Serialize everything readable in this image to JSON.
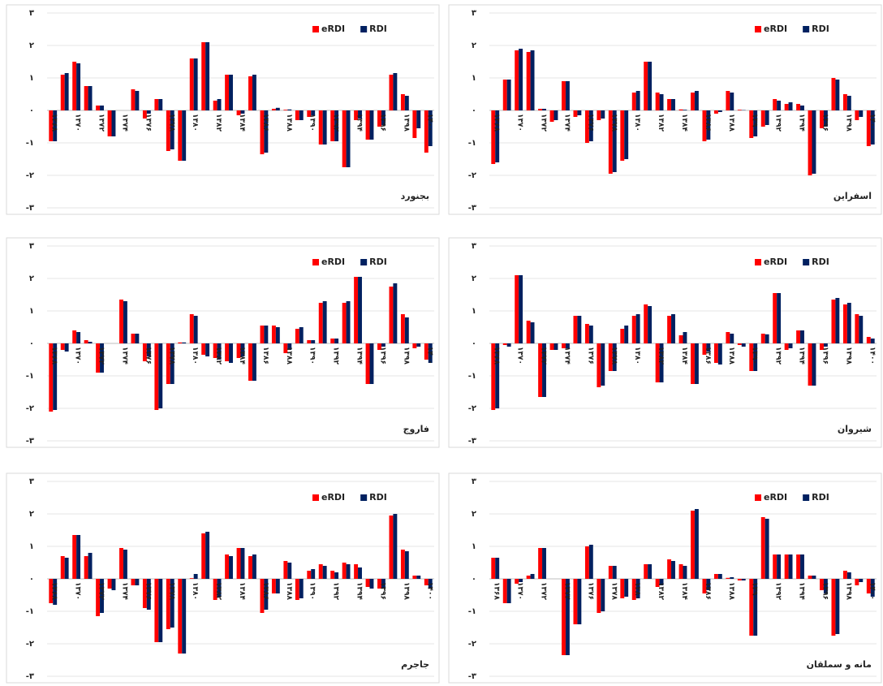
{
  "chart_data": [
    {
      "type": "bar",
      "title": "بجنورد",
      "legend": "upper right",
      "grid": true,
      "categories": [
        "۱۳۶۸",
        null,
        "۱۳۷۰",
        null,
        "۱۳۷۲",
        null,
        "۱۳۷۴",
        null,
        "۱۳۷۶",
        null,
        "۱۳۷۸",
        null,
        "۱۳۸۰",
        null,
        "۱۳۸۲",
        null,
        "۱۳۸۴",
        null,
        "۱۳۸۶",
        null,
        "۱۳۸۸",
        null,
        "۱۳۹۰",
        null,
        "۱۳۹۲",
        null,
        "۱۳۹۴",
        null,
        "۱۳۹۶",
        null,
        "۱۳۹۸",
        null,
        "۱۴۰۰"
      ],
      "series": [
        {
          "name": "eRDI",
          "color": "#ff0000",
          "values": [
            -0.95,
            1.1,
            1.5,
            0.75,
            0.15,
            -0.8,
            0,
            0.65,
            -0.25,
            0.35,
            -1.25,
            -1.55,
            1.6,
            2.1,
            0.3,
            1.1,
            -0.15,
            1.05,
            -1.35,
            0.05,
            0.02,
            -0.3,
            -0.2,
            -1.05,
            -0.95,
            -1.75,
            -0.3,
            -0.9,
            -0.5,
            1.1,
            0.5,
            -0.85,
            -1.3
          ]
        },
        {
          "name": "RDI",
          "color": "#002060",
          "values": [
            -0.95,
            1.15,
            1.45,
            0.75,
            0.15,
            -0.8,
            0,
            0.6,
            -0.1,
            0.35,
            -1.2,
            -1.55,
            1.6,
            2.1,
            0.35,
            1.1,
            -0.1,
            1.1,
            -1.3,
            0.08,
            0.03,
            -0.3,
            -0.15,
            -1.05,
            -0.95,
            -1.75,
            -0.25,
            -0.9,
            -0.45,
            1.15,
            0.45,
            -0.55,
            -1.1
          ]
        }
      ],
      "ylim": [
        -3,
        3
      ],
      "yticks": [
        {
          "value": -3,
          "label": "-۳"
        },
        {
          "value": -2,
          "label": "-۲"
        },
        {
          "value": -1,
          "label": "-۱"
        },
        {
          "value": 0,
          "label": "۰"
        },
        {
          "value": 1,
          "label": "۱"
        },
        {
          "value": 2,
          "label": "۲"
        },
        {
          "value": 3,
          "label": "۳"
        }
      ]
    },
    {
      "type": "bar",
      "title": "اسفراین",
      "legend": "upper right",
      "grid": true,
      "categories": [
        "۱۳۶۸",
        null,
        "۱۳۷۰",
        null,
        "۱۳۷۲",
        null,
        "۱۳۷۴",
        null,
        "۱۳۷۶",
        null,
        "۱۳۷۸",
        null,
        "۱۳۸۰",
        null,
        "۱۳۸۲",
        null,
        "۱۳۸۴",
        null,
        "۱۳۸۶",
        null,
        "۱۳۸۸",
        null,
        "۱۳۹۰",
        null,
        "۱۳۹۲",
        null,
        "۱۳۹۴",
        null,
        "۱۳۹۶",
        null,
        "۱۳۹۸",
        null,
        "۱۴۰۰"
      ],
      "series": [
        {
          "name": "eRDI",
          "color": "#ff0000",
          "values": [
            -1.65,
            0.95,
            1.85,
            1.8,
            0.05,
            -0.35,
            0.9,
            -0.2,
            -1.0,
            -0.3,
            -1.95,
            -1.55,
            0.55,
            1.5,
            0.55,
            0.35,
            0.03,
            0.55,
            -0.95,
            -0.1,
            0.6,
            0.02,
            -0.85,
            -0.5,
            0.35,
            0.2,
            0.2,
            -2.0,
            -0.55,
            1.0,
            0.5,
            -0.3,
            -1.1
          ]
        },
        {
          "name": "RDI",
          "color": "#002060",
          "values": [
            -1.6,
            0.95,
            1.9,
            1.85,
            0.05,
            -0.3,
            0.9,
            -0.15,
            -0.95,
            -0.25,
            -1.9,
            -1.5,
            0.6,
            1.5,
            0.5,
            0.35,
            0.02,
            0.6,
            -0.9,
            -0.05,
            0.55,
            0.01,
            -0.8,
            -0.45,
            0.3,
            0.25,
            0.15,
            -1.95,
            -0.5,
            0.95,
            0.45,
            -0.2,
            -1.05
          ]
        }
      ],
      "ylim": [
        -3,
        3
      ],
      "yticks": [
        {
          "value": -3,
          "label": "-۳"
        },
        {
          "value": -2,
          "label": "-۲"
        },
        {
          "value": -1,
          "label": "-۱"
        },
        {
          "value": 0,
          "label": "۰"
        },
        {
          "value": 1,
          "label": "۱"
        },
        {
          "value": 2,
          "label": "۲"
        },
        {
          "value": 3,
          "label": "۳"
        }
      ]
    },
    {
      "type": "bar",
      "title": "فاروج",
      "legend": "upper right",
      "grid": true,
      "categories": [
        "۱۳۶۸",
        null,
        "۱۳۷۰",
        null,
        "۱۳۷۲",
        null,
        "۱۳۷۴",
        null,
        "۱۳۷۶",
        null,
        "۱۳۷۸",
        null,
        "۱۳۸۰",
        null,
        "۱۳۸۲",
        null,
        "۱۳۸۴",
        null,
        "۱۳۸۶",
        null,
        "۱۳۸۸",
        null,
        "۱۳۹۰",
        null,
        "۱۳۹۲",
        null,
        "۱۳۹۴",
        null,
        "۱۳۹۶",
        null,
        "۱۳۹۸",
        null,
        "۱۴۰۰"
      ],
      "series": [
        {
          "name": "eRDI",
          "color": "#ff0000",
          "values": [
            -2.1,
            -0.2,
            0.4,
            0.1,
            -0.9,
            0,
            1.35,
            0.3,
            -0.55,
            -2.05,
            -1.25,
            0.03,
            0.9,
            -0.35,
            -0.45,
            -0.55,
            -0.45,
            -1.15,
            0.55,
            0.55,
            -0.3,
            0.45,
            0.1,
            1.25,
            0.15,
            1.25,
            2.05,
            -1.25,
            -0.2,
            1.75,
            0.9,
            -0.15,
            -0.5
          ]
        },
        {
          "name": "RDI",
          "color": "#002060",
          "values": [
            -2.05,
            -0.25,
            0.35,
            0.05,
            -0.9,
            0,
            1.3,
            0.3,
            -0.4,
            -2.0,
            -1.25,
            0.03,
            0.85,
            -0.4,
            -0.5,
            -0.6,
            -0.4,
            -1.15,
            0.55,
            0.5,
            -0.2,
            0.5,
            0.1,
            1.3,
            0.15,
            1.3,
            2.05,
            -1.25,
            -0.1,
            1.85,
            0.8,
            -0.1,
            -0.6
          ]
        }
      ],
      "ylim": [
        -3,
        3
      ],
      "yticks": [
        {
          "value": -3,
          "label": "-۳"
        },
        {
          "value": -2,
          "label": "-۲"
        },
        {
          "value": -1,
          "label": "-۱"
        },
        {
          "value": 0,
          "label": "۰"
        },
        {
          "value": 1,
          "label": "۱"
        },
        {
          "value": 2,
          "label": "۲"
        },
        {
          "value": 3,
          "label": "۳"
        }
      ]
    },
    {
      "type": "bar",
      "title": "شیروان",
      "legend": "upper right",
      "grid": true,
      "categories": [
        "۱۳۶۸",
        null,
        "۱۳۷۰",
        null,
        "۱۳۷۲",
        null,
        "۱۳۷۴",
        null,
        "۱۳۷۶",
        null,
        "۱۳۷۸",
        null,
        "۱۳۸۰",
        null,
        "۱۳۸۲",
        null,
        "۱۳۸۴",
        null,
        "۱۳۸۶",
        null,
        "۱۳۸۸",
        null,
        "۱۳۹۰",
        null,
        "۱۳۹۲",
        null,
        "۱۳۹۴",
        null,
        "۱۳۹۶",
        null,
        "۱۳۹۸",
        null,
        "۱۴۰۰"
      ],
      "series": [
        {
          "name": "eRDI",
          "color": "#ff0000",
          "values": [
            -2.05,
            -0.05,
            2.1,
            0.7,
            -1.65,
            -0.2,
            -0.15,
            0.85,
            0.6,
            -1.35,
            -0.85,
            0.45,
            0.85,
            1.2,
            -1.2,
            0.85,
            0.25,
            -1.25,
            -0.35,
            -0.6,
            0.35,
            -0.05,
            -0.85,
            0.3,
            1.55,
            -0.2,
            0.4,
            -1.3,
            -0.2,
            1.35,
            1.2,
            0.9,
            0.2
          ]
        },
        {
          "name": "RDI",
          "color": "#002060",
          "values": [
            -2.0,
            -0.1,
            2.1,
            0.65,
            -1.65,
            -0.2,
            -0.15,
            0.85,
            0.55,
            -1.3,
            -0.85,
            0.55,
            0.9,
            1.15,
            -1.2,
            0.9,
            0.35,
            -1.25,
            -0.25,
            -0.65,
            0.3,
            -0.1,
            -0.85,
            0.28,
            1.55,
            -0.15,
            0.4,
            -1.3,
            -0.1,
            1.4,
            1.25,
            0.85,
            0.15
          ]
        }
      ],
      "ylim": [
        -3,
        3
      ],
      "yticks": [
        {
          "value": -3,
          "label": "-۳"
        },
        {
          "value": -2,
          "label": "-۲"
        },
        {
          "value": -1,
          "label": "-۱"
        },
        {
          "value": 0,
          "label": "۰"
        },
        {
          "value": 1,
          "label": "۱"
        },
        {
          "value": 2,
          "label": "۲"
        },
        {
          "value": 3,
          "label": "۳"
        }
      ]
    },
    {
      "type": "bar",
      "title": "جاجرم",
      "legend": "upper right",
      "grid": true,
      "categories": [
        "۱۳۶۸",
        null,
        "۱۳۷۰",
        null,
        "۱۳۷۲",
        null,
        "۱۳۷۴",
        null,
        "۱۳۷۶",
        null,
        "۱۳۷۸",
        null,
        "۱۳۸۰",
        null,
        "۱۳۸۲",
        null,
        "۱۳۸۴",
        null,
        "۱۳۸۶",
        null,
        "۱۳۸۸",
        null,
        "۱۳۹۰",
        null,
        "۱۳۹۲",
        null,
        "۱۳۹۴",
        null,
        "۱۳۹۶",
        null,
        "۱۳۹۸",
        null,
        "۱۴۰۰"
      ],
      "series": [
        {
          "name": "eRDI",
          "color": "#ff0000",
          "values": [
            -0.75,
            0.7,
            1.35,
            0.7,
            -1.15,
            -0.3,
            0.95,
            -0.2,
            -0.9,
            -1.95,
            -1.55,
            -2.3,
            0.02,
            1.4,
            -0.65,
            0.75,
            0.95,
            0.7,
            -1.05,
            -0.45,
            0.55,
            -0.65,
            0.25,
            0.45,
            0.25,
            0.5,
            0.45,
            -0.25,
            -0.3,
            1.95,
            0.9,
            0.1,
            -0.2
          ]
        },
        {
          "name": "RDI",
          "color": "#002060",
          "values": [
            -0.8,
            0.65,
            1.35,
            0.8,
            -1.05,
            -0.35,
            0.9,
            -0.2,
            -0.95,
            -1.95,
            -1.5,
            -2.3,
            0.15,
            1.45,
            -0.55,
            0.7,
            0.95,
            0.75,
            -0.95,
            -0.45,
            0.5,
            -0.6,
            0.3,
            0.4,
            0.2,
            0.45,
            0.35,
            -0.3,
            -0.3,
            2.0,
            0.85,
            0.1,
            -0.3
          ]
        }
      ],
      "ylim": [
        -3,
        3
      ],
      "yticks": [
        {
          "value": -3,
          "label": "-۳"
        },
        {
          "value": -2,
          "label": "-۲"
        },
        {
          "value": -1,
          "label": "-۱"
        },
        {
          "value": 0,
          "label": "۰"
        },
        {
          "value": 1,
          "label": "۱"
        },
        {
          "value": 2,
          "label": "۲"
        },
        {
          "value": 3,
          "label": "۳"
        }
      ]
    },
    {
      "type": "bar",
      "title": "مانه و سملقان",
      "legend": "upper right",
      "grid": true,
      "categories": [
        "۱۳۶۸",
        null,
        "۱۳۷۰",
        null,
        "۱۳۷۲",
        null,
        "۱۳۷۴",
        null,
        "۱۳۷۶",
        null,
        "۱۳۷۸",
        null,
        "۱۳۸۰",
        null,
        "۱۳۸۲",
        null,
        "۱۳۸۴",
        null,
        "۱۳۸۶",
        null,
        "۱۳۸۸",
        null,
        "۱۳۹۰",
        null,
        "۱۳۹۲",
        null,
        "۱۳۹۴",
        null,
        "۱۳۹۶",
        null,
        "۱۳۹۸",
        null,
        "۱۴۰۰"
      ],
      "series": [
        {
          "name": "eRDI",
          "color": "#ff0000",
          "values": [
            0.65,
            -0.75,
            -0.15,
            0.1,
            0.95,
            0,
            -2.35,
            -1.4,
            1.0,
            -1.05,
            0.4,
            -0.6,
            -0.65,
            0.45,
            -0.25,
            0.6,
            0.45,
            2.1,
            -0.45,
            0.15,
            0.03,
            -0.05,
            -1.75,
            1.9,
            0.75,
            0.75,
            0.75,
            0.1,
            -0.35,
            -1.75,
            0.25,
            -0.2,
            -0.45
          ]
        },
        {
          "name": "RDI",
          "color": "#002060",
          "values": [
            0.65,
            -0.75,
            -0.1,
            0.15,
            0.95,
            0,
            -2.35,
            -1.4,
            1.05,
            -1.0,
            0.4,
            -0.55,
            -0.6,
            0.45,
            -0.2,
            0.55,
            0.4,
            2.15,
            -0.35,
            0.15,
            0.05,
            -0.05,
            -1.75,
            1.85,
            0.75,
            0.75,
            0.75,
            0.1,
            -0.45,
            -1.7,
            0.2,
            -0.1,
            -0.55
          ]
        }
      ],
      "ylim": [
        -3,
        3
      ],
      "yticks": [
        {
          "value": -3,
          "label": "-۳"
        },
        {
          "value": -2,
          "label": "-۲"
        },
        {
          "value": -1,
          "label": "-۱"
        },
        {
          "value": 0,
          "label": "۰"
        },
        {
          "value": 1,
          "label": "۱"
        },
        {
          "value": 2,
          "label": "۲"
        },
        {
          "value": 3,
          "label": "۳"
        }
      ]
    }
  ]
}
